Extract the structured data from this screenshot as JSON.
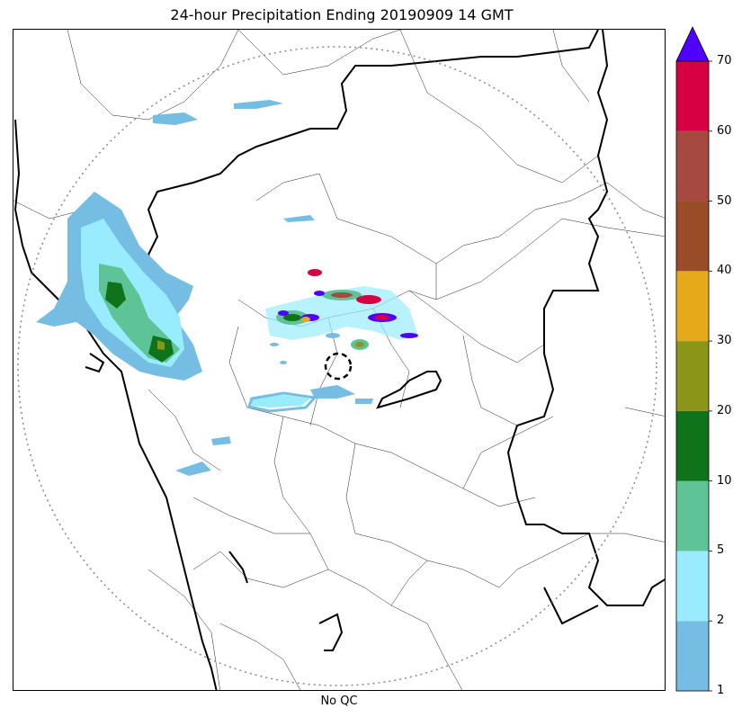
{
  "title": "24-hour Precipitation Ending 20190909 14 GMT",
  "xlabel": "No QC",
  "colorbar": {
    "ticks": [
      "1",
      "2",
      "5",
      "10",
      "20",
      "30",
      "40",
      "50",
      "60",
      "70"
    ],
    "bins": [
      {
        "from": 1,
        "to": 2,
        "color": "#76bde4"
      },
      {
        "from": 2,
        "to": 5,
        "color": "#98ecfd"
      },
      {
        "from": 5,
        "to": 10,
        "color": "#5ec498"
      },
      {
        "from": 10,
        "to": 20,
        "color": "#0f7419"
      },
      {
        "from": 20,
        "to": 30,
        "color": "#8b951a"
      },
      {
        "from": 30,
        "to": 40,
        "color": "#e6a91a"
      },
      {
        "from": 40,
        "to": 50,
        "color": "#994d27"
      },
      {
        "from": 50,
        "to": 60,
        "color": "#a54941"
      },
      {
        "from": 60,
        "to": 70,
        "color": "#d40042"
      }
    ],
    "extend_color": "#5000ff",
    "extend": "max"
  },
  "map": {
    "range_ring_color": "#888888",
    "radar_marker": "dashed-circle",
    "boundary_color": "#000000"
  }
}
